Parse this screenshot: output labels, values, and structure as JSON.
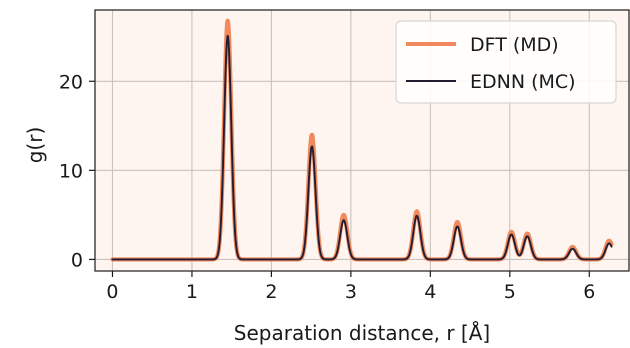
{
  "chart_data": {
    "type": "line",
    "title": "",
    "xlabel": "Separation distance, r [Å]",
    "ylabel": "g(r)",
    "xlim": [
      -0.22,
      6.5
    ],
    "ylim": [
      -1.3,
      28
    ],
    "xticks": [
      0,
      1,
      2,
      3,
      4,
      5,
      6
    ],
    "yticks": [
      0,
      10,
      20
    ],
    "grid": true,
    "legend_position": "top-right",
    "background_color": "#fff5f0",
    "series": [
      {
        "name": "DFT (MD)",
        "color": "#f08a5d",
        "peaks": [
          {
            "r": 1.45,
            "height": 26.8
          },
          {
            "r": 2.51,
            "height": 14.0
          },
          {
            "r": 2.91,
            "height": 5.0
          },
          {
            "r": 3.83,
            "height": 5.4
          },
          {
            "r": 4.34,
            "height": 4.2
          },
          {
            "r": 5.02,
            "height": 3.1
          },
          {
            "r": 5.22,
            "height": 2.9
          },
          {
            "r": 5.79,
            "height": 1.4
          },
          {
            "r": 6.25,
            "height": 2.1
          }
        ]
      },
      {
        "name": "EDNN (MC)",
        "color": "#221d33",
        "peaks": [
          {
            "r": 1.45,
            "height": 25.1
          },
          {
            "r": 2.51,
            "height": 12.7
          },
          {
            "r": 2.91,
            "height": 4.4
          },
          {
            "r": 3.83,
            "height": 4.9
          },
          {
            "r": 4.34,
            "height": 3.7
          },
          {
            "r": 5.02,
            "height": 2.8
          },
          {
            "r": 5.22,
            "height": 2.6
          },
          {
            "r": 5.79,
            "height": 1.2
          },
          {
            "r": 6.25,
            "height": 1.8
          }
        ]
      }
    ]
  }
}
